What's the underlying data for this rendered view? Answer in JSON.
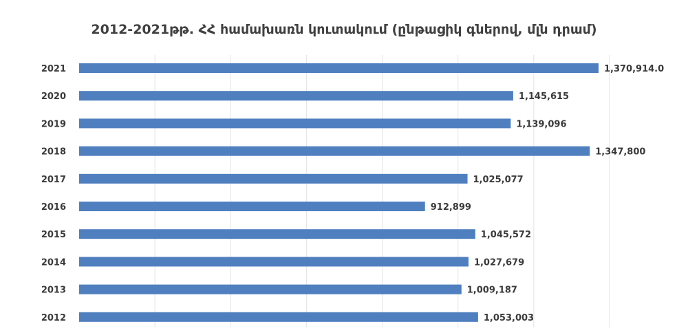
{
  "colors": {
    "bar": "#4f7fbf",
    "grid": "#e3e3e3"
  },
  "chart_data": {
    "type": "bar",
    "orientation": "horizontal",
    "title": "2012-2021թթ. ՀՀ համախառն կուտակում (ընթացիկ գներով, մլն դրամ)",
    "xlabel": "",
    "ylabel": "",
    "grid": true,
    "legend": "none",
    "xlim": [
      0,
      1400000
    ],
    "categories": [
      "2021",
      "2020",
      "2019",
      "2018",
      "2017",
      "2016",
      "2015",
      "2014",
      "2013",
      "2012"
    ],
    "values": [
      1370914.0,
      1145615,
      1139096,
      1347800,
      1025077,
      912899,
      1045572,
      1027679,
      1009187,
      1053003
    ],
    "value_labels": [
      "1,370,914.0",
      "1,145,615",
      "1,139,096",
      "1,347,800",
      "1,025,077",
      "912,899",
      "1,045,572",
      "1,027,679",
      "1,009,187",
      "1,053,003"
    ]
  }
}
